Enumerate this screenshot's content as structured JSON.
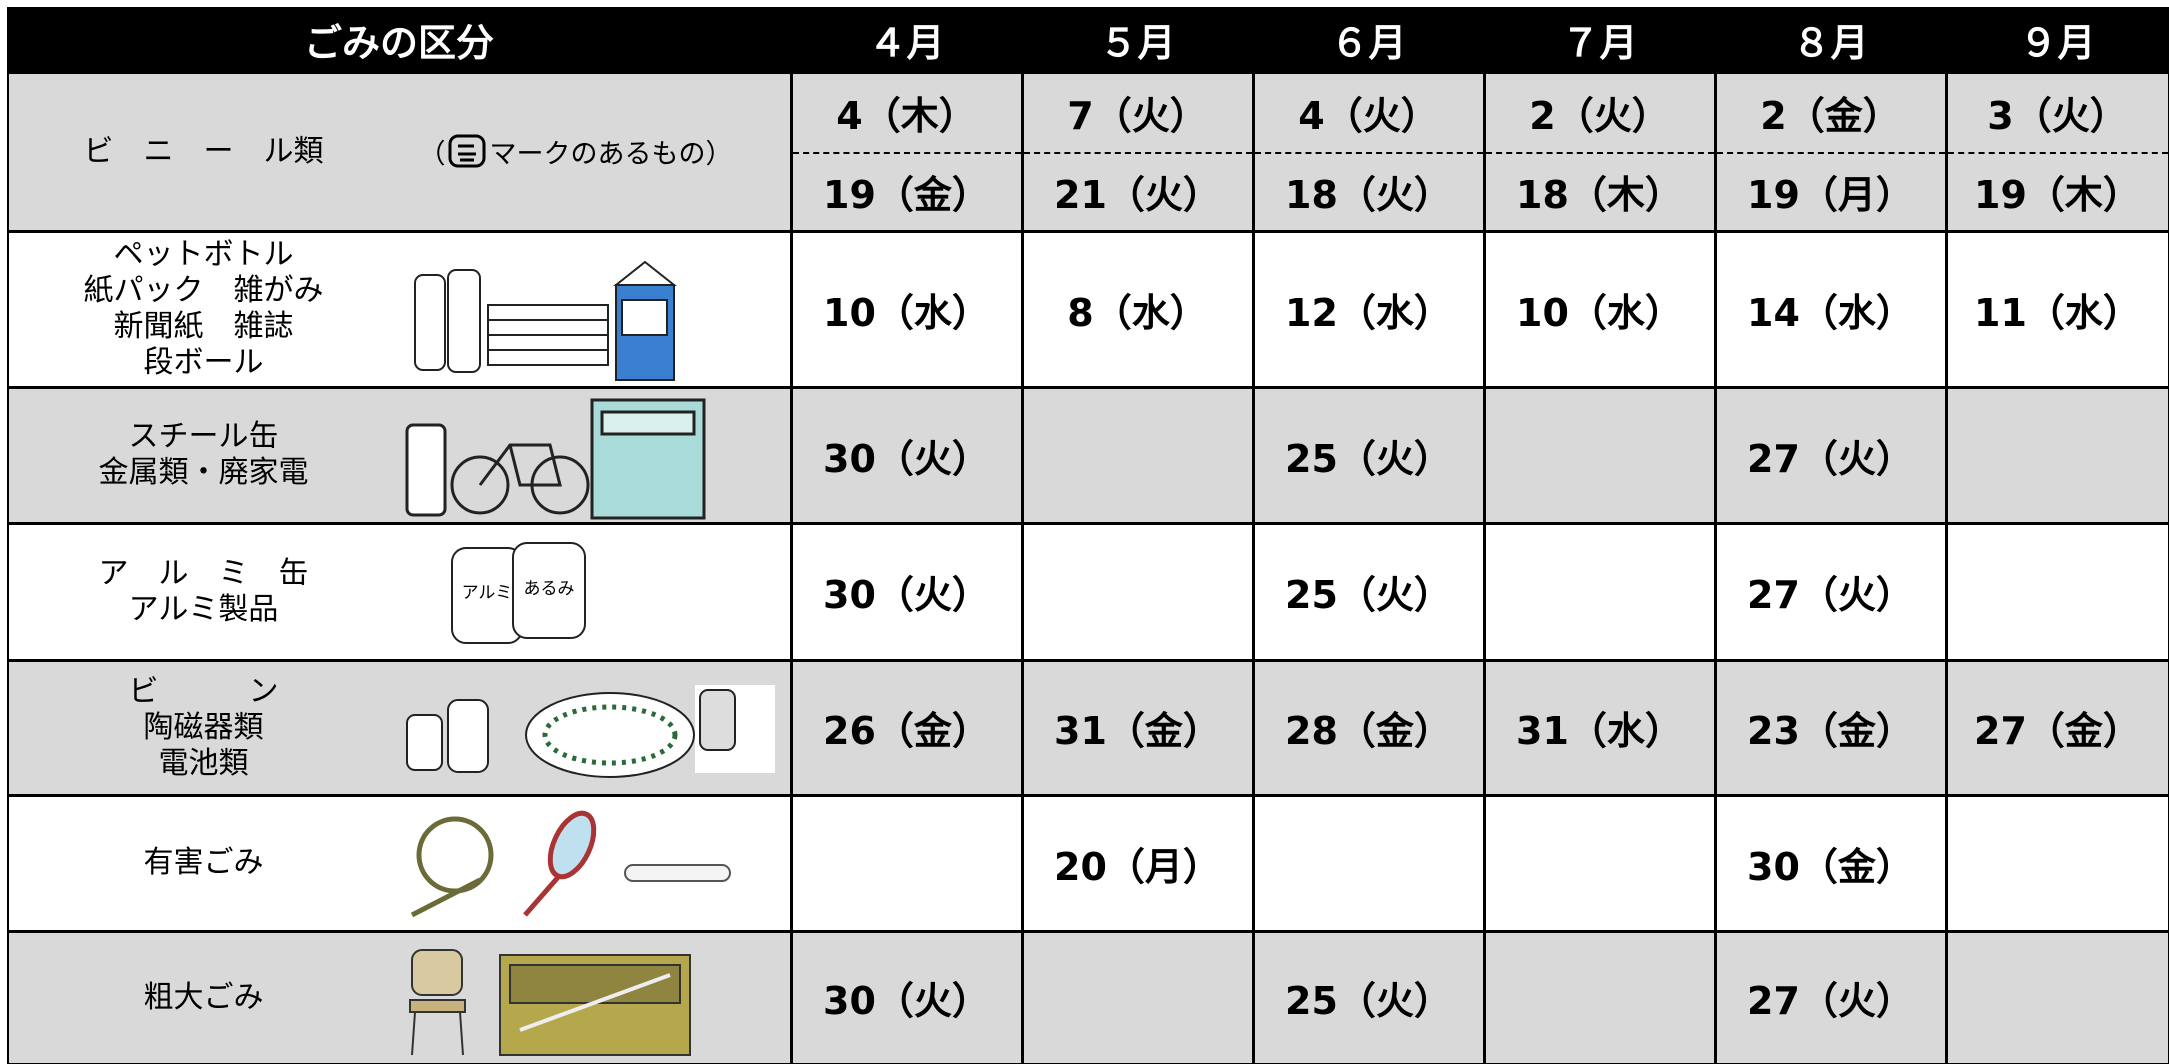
{
  "header": {
    "category": "ごみの区分",
    "months": [
      "４月",
      "５月",
      "６月",
      "７月",
      "８月",
      "９月"
    ]
  },
  "rows": [
    {
      "label": [
        "ビ　ニ　ー　ル類"
      ],
      "note": [
        "（",
        "マークのあるもの）"
      ],
      "dates": [
        [
          "4（木）",
          "19（金）"
        ],
        [
          "7（火）",
          "21（火）"
        ],
        [
          "4（火）",
          "18（火）"
        ],
        [
          "2（火）",
          "18（木）"
        ],
        [
          "2（金）",
          "19（月）"
        ],
        [
          "3（火）",
          "19（木）"
        ]
      ]
    },
    {
      "label": [
        "ペットボトル",
        "紙パック　雑がみ",
        "新聞紙　雑誌",
        "段ボール"
      ],
      "dates": [
        "10（水）",
        "8（水）",
        "12（水）",
        "10（水）",
        "14（水）",
        "11（水）"
      ]
    },
    {
      "label": [
        "スチール缶",
        "金属類・廃家電"
      ],
      "dates": [
        "30（火）",
        null,
        "25（火）",
        null,
        "27（火）",
        null
      ]
    },
    {
      "label": [
        "ア　ル　ミ　缶",
        "アルミ製品"
      ],
      "image_texts": [
        "アルミ",
        "あるみ"
      ],
      "dates": [
        "30（火）",
        null,
        "25（火）",
        null,
        "27（火）",
        null
      ]
    },
    {
      "label": [
        "ビ　　　ン",
        "陶磁器類",
        "電池類"
      ],
      "dates": [
        "26（金）",
        "31（金）",
        "28（金）",
        "31（水）",
        "23（金）",
        "27（金）"
      ]
    },
    {
      "label": [
        "有害ごみ"
      ],
      "dates": [
        null,
        "20（月）",
        null,
        null,
        "30（金）",
        null
      ]
    },
    {
      "label": [
        "粗大ごみ"
      ],
      "dates": [
        "30（火）",
        null,
        "25（火）",
        null,
        "27（火）",
        null
      ]
    }
  ]
}
